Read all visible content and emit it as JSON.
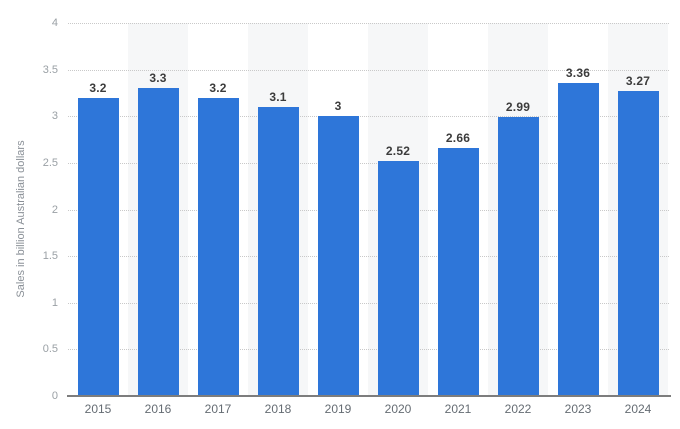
{
  "chart_data": {
    "type": "bar",
    "categories": [
      "2015",
      "2016",
      "2017",
      "2018",
      "2019",
      "2020",
      "2021",
      "2022",
      "2023",
      "2024"
    ],
    "values": [
      3.2,
      3.3,
      3.2,
      3.1,
      3,
      2.52,
      2.66,
      2.99,
      3.36,
      3.27
    ],
    "value_labels": [
      "3.2",
      "3.3",
      "3.2",
      "3.1",
      "3",
      "2.52",
      "2.66",
      "2.99",
      "3.36",
      "3.27"
    ],
    "series_name": "Sales",
    "title": "",
    "xlabel": "",
    "ylabel": "Sales in billion Australian dollars",
    "ylim": [
      0,
      4
    ],
    "yticks": [
      "0",
      "0.5",
      "1",
      "1.5",
      "2",
      "2.5",
      "3",
      "3.5",
      "4"
    ],
    "ytick_values": [
      0,
      0.5,
      1,
      1.5,
      2,
      2.5,
      3,
      3.5,
      4
    ],
    "grid": "horizontal-dotted",
    "legend_position": "none",
    "banded_categories": [
      "2016",
      "2018",
      "2020",
      "2022",
      "2024"
    ]
  },
  "colors": {
    "bar": "#2e76d9",
    "column_band": "#f6f7f8",
    "gridline": "#c9c9c9",
    "axis_line": "#7d7d7d",
    "value_label": "#3c3c3c",
    "y_tick_label": "#9aa0a5",
    "x_tick_label": "#656c73",
    "axis_title": "#8a9097",
    "background": "#ffffff"
  }
}
